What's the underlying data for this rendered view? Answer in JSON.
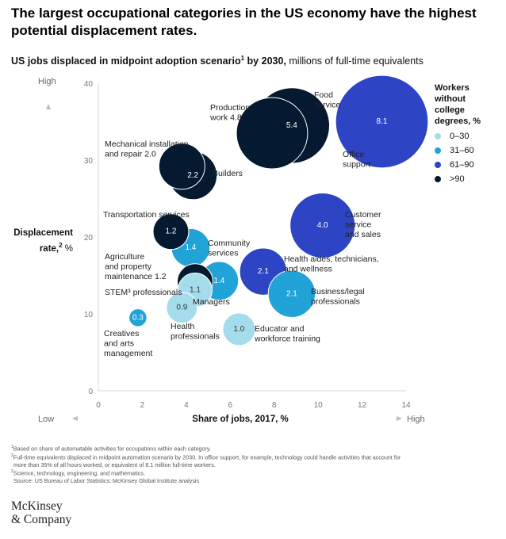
{
  "chart_data": {
    "type": "scatter",
    "title": "The largest occupational categories in the US economy have the highest potential displacement rates.",
    "subtitle_bold": "US jobs displaced in midpoint adoption scenario",
    "subtitle_bold_sup": "1",
    "subtitle_bold_end": " by 2030,",
    "subtitle_rest": " millions of full-time equivalents",
    "xlabel": "Share of jobs, 2017, %",
    "ylabel": "Displacement rate,",
    "ylabel_sup": "2",
    "ylabel_unit": " %",
    "x_low": "Low",
    "x_high": "High",
    "y_high": "High",
    "xlim": [
      0,
      14
    ],
    "ylim": [
      0,
      40
    ],
    "x_ticks": [
      "0",
      "2",
      "4",
      "6",
      "8",
      "10",
      "12",
      "14"
    ],
    "y_ticks": [
      "0",
      "10",
      "20",
      "30",
      "40"
    ],
    "grid": false,
    "legend": {
      "title": [
        "Workers",
        "without",
        "college",
        "degrees, %"
      ],
      "items": [
        {
          "label": "0–30",
          "color": "#a5dcec"
        },
        {
          "label": "31–60",
          "color": "#22a3d8"
        },
        {
          "label": "61–90",
          "color": "#2d45c4"
        },
        {
          "label": ">90",
          "color": "#051a30"
        }
      ]
    },
    "points": [
      {
        "x": 12.9,
        "y": 35.0,
        "value": 8.1,
        "label": "8.1",
        "category": "61–90"
      },
      {
        "x": 8.8,
        "y": 34.5,
        "value": 5.4,
        "label": "5.4",
        "category": ">90"
      },
      {
        "x": 7.9,
        "y": 33.5,
        "value": 4.8,
        "label": "",
        "category": ">90"
      },
      {
        "x": 10.2,
        "y": 21.5,
        "value": 4.0,
        "label": "4.0",
        "category": "61–90"
      },
      {
        "x": 3.8,
        "y": 29.2,
        "value": 2.0,
        "label": "",
        "category": ">90"
      },
      {
        "x": 4.3,
        "y": 28.0,
        "value": 2.2,
        "label": "2.2",
        "category": ">90"
      },
      {
        "x": 3.3,
        "y": 20.7,
        "value": 1.2,
        "label": "1.2",
        "category": ">90"
      },
      {
        "x": 4.2,
        "y": 18.6,
        "value": 1.4,
        "label": "1.4",
        "category": "31–60"
      },
      {
        "x": 7.5,
        "y": 15.5,
        "value": 2.1,
        "label": "2.1",
        "category": "61–90"
      },
      {
        "x": 5.5,
        "y": 14.3,
        "value": 1.4,
        "label": "1.4",
        "category": "31–60"
      },
      {
        "x": 8.8,
        "y": 12.6,
        "value": 2.1,
        "label": "2.1",
        "category": "31–60"
      },
      {
        "x": 4.4,
        "y": 14.2,
        "value": 1.2,
        "label": "",
        "category": ">90"
      },
      {
        "x": 4.4,
        "y": 13.1,
        "value": 1.1,
        "label": "1.1",
        "category": "0–30"
      },
      {
        "x": 3.8,
        "y": 10.8,
        "value": 0.9,
        "label": "0.9",
        "category": "0–30"
      },
      {
        "x": 6.4,
        "y": 8.0,
        "value": 1.0,
        "label": "1.0",
        "category": "0–30"
      },
      {
        "x": 1.8,
        "y": 9.5,
        "value": 0.3,
        "label": "0.3",
        "category": "31–60"
      }
    ],
    "annotations": [
      {
        "lines": [
          "Food",
          "service"
        ]
      },
      {
        "lines": [
          "Production",
          "work 4.8"
        ]
      },
      {
        "lines": [
          "Office",
          "support"
        ]
      },
      {
        "lines": [
          "Mechanical installation",
          "and repair 2.0"
        ]
      },
      {
        "lines": [
          "Builders"
        ]
      },
      {
        "lines": [
          "Customer",
          "service",
          "and sales"
        ]
      },
      {
        "lines": [
          "Transportation services"
        ]
      },
      {
        "lines": [
          "Community",
          "services"
        ]
      },
      {
        "lines": [
          "Agriculture",
          "and property",
          "maintenance 1.2"
        ]
      },
      {
        "lines": [
          "Health aides, technicians,",
          "and wellness"
        ]
      },
      {
        "lines": [
          "STEM³ professionals"
        ]
      },
      {
        "lines": [
          "Managers"
        ]
      },
      {
        "lines": [
          "Business/legal",
          "professionals"
        ]
      },
      {
        "lines": [
          "Creatives",
          "and arts",
          "management"
        ]
      },
      {
        "lines": [
          "Health",
          "professionals"
        ]
      },
      {
        "lines": [
          "Educator and",
          "workforce training"
        ]
      }
    ]
  },
  "footnotes": [
    {
      "sup": "1",
      "text": "Based on share of automatable activities for occupations within each category."
    },
    {
      "sup": "2",
      "text": "Full-time equivalents displaced in midpoint automation scenario by 2030. In office support, for example, technology could handle activities that account for"
    },
    {
      "sup": "",
      "text": "more than 35% of all hours worked, or equivalent of 8.1 million full-time workers."
    },
    {
      "sup": "3",
      "text": "Science, technology, engineering, and mathematics."
    },
    {
      "sup": "",
      "text": "Source: US Bureau of Labor Statistics; McKinsey Global Institute analysis"
    }
  ],
  "logo": {
    "line1": "McKinsey",
    "line2": "& Company"
  }
}
